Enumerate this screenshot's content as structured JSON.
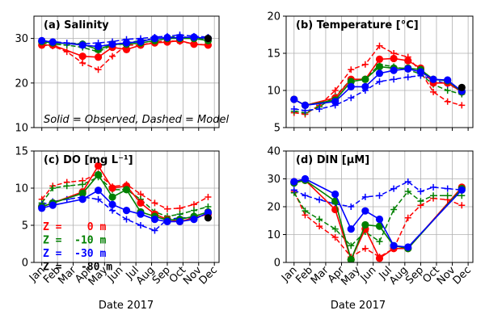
{
  "chart_data": {
    "type": "line",
    "months": [
      "Jan",
      "Feb",
      "Mar",
      "Apr",
      "May",
      "Jun",
      "Jul",
      "Aug",
      "Sep",
      "Oct",
      "Nov",
      "Dec"
    ],
    "xlabel": "Date 2017",
    "note": "Solid = Observed, Dashed = Model",
    "colors": {
      "0": "#ff0000",
      "-10": "#008000",
      "-30": "#0000ff",
      "-80": "#000000"
    },
    "legend": [
      {
        "label": "Z =    0 m",
        "color": "#ff0000"
      },
      {
        "label": "Z =  -10 m",
        "color": "#008000"
      },
      {
        "label": "Z =  -30 m",
        "color": "#0000ff"
      },
      {
        "label": "Z =   -80 m",
        "color": "#000000"
      }
    ],
    "panels": [
      {
        "id": "salinity",
        "title": "(a) Salinity",
        "ylim": [
          10,
          35
        ],
        "yticks": [
          10,
          20,
          30
        ],
        "grid": true,
        "observed": [
          {
            "depth": "0",
            "x": [
              1.0,
              1.7,
              3.6,
              4.6,
              5.5,
              6.4,
              7.3,
              8.2,
              9.0,
              9.8,
              10.7,
              11.6
            ],
            "y": [
              28.5,
              28.5,
              26,
              25.8,
              28,
              27.5,
              28.5,
              29,
              29.2,
              29.5,
              28.7,
              28.5
            ]
          },
          {
            "depth": "-10",
            "x": [
              1.0,
              1.7,
              3.6,
              4.6,
              5.5,
              6.4,
              7.3,
              8.2,
              9.0,
              9.8,
              10.7,
              11.6
            ],
            "y": [
              29.3,
              29,
              28.7,
              27.5,
              28.7,
              28.7,
              29,
              29.5,
              30,
              30,
              30,
              29.5
            ]
          },
          {
            "depth": "-30",
            "x": [
              1.0,
              1.7,
              3.6,
              4.6,
              5.5,
              6.4,
              7.3,
              8.2,
              9.0,
              9.8,
              10.7,
              11.6
            ],
            "y": [
              29.5,
              29.2,
              28.5,
              28.2,
              28.7,
              29,
              29.3,
              30,
              30.2,
              30.2,
              30.3,
              30
            ]
          },
          {
            "depth": "-80",
            "x": [
              11.6
            ],
            "y": [
              30
            ]
          }
        ],
        "model": [
          {
            "depth": "0",
            "x": [
              1.0,
              1.7,
              2.6,
              3.6,
              4.6,
              5.5,
              6.4,
              7.3,
              8.2,
              9.0,
              9.8,
              10.7,
              11.6
            ],
            "y": [
              28.5,
              28.3,
              27,
              24.5,
              23,
              26,
              28.5,
              28.5,
              29.2,
              29.5,
              29.3,
              28.8,
              28.5
            ]
          },
          {
            "depth": "-10",
            "x": [
              1.0,
              1.7,
              2.6,
              3.6,
              4.6,
              5.5,
              6.4,
              7.3,
              8.2,
              9.0,
              9.8,
              10.7,
              11.6
            ],
            "y": [
              29,
              28.7,
              28.5,
              28,
              27,
              28.5,
              29,
              29.5,
              30,
              30.2,
              30.5,
              30,
              30
            ]
          },
          {
            "depth": "-30",
            "x": [
              1.0,
              1.7,
              2.6,
              3.6,
              4.6,
              5.5,
              6.4,
              7.3,
              8.2,
              9.0,
              9.8,
              10.7,
              11.6
            ],
            "y": [
              29.5,
              29.3,
              29,
              28.8,
              29,
              29.3,
              29.8,
              30,
              30.3,
              30.5,
              30.8,
              30.5,
              30.3
            ]
          }
        ]
      },
      {
        "id": "temperature",
        "title": "(b) Temperature [°C]",
        "ylim": [
          5,
          20
        ],
        "yticks": [
          5,
          10,
          15,
          20
        ],
        "grid": true,
        "observed": [
          {
            "depth": "0",
            "x": [
              1.0,
              1.7,
              3.6,
              4.6,
              5.5,
              6.4,
              7.3,
              8.2,
              9.0,
              9.8,
              10.7,
              11.6
            ],
            "y": [
              8.8,
              8,
              9,
              11.5,
              11.5,
              14.2,
              14.3,
              14,
              13,
              11,
              11,
              9.8
            ]
          },
          {
            "depth": "-10",
            "x": [
              1.0,
              1.7,
              3.6,
              4.6,
              5.5,
              6.4,
              7.3,
              8.2,
              9.0,
              9.8,
              10.7,
              11.6
            ],
            "y": [
              8.8,
              8,
              8.7,
              11.2,
              11.5,
              13.2,
              13,
              13,
              12.8,
              11.5,
              11.3,
              9.8
            ]
          },
          {
            "depth": "-30",
            "x": [
              1.0,
              1.7,
              3.6,
              4.6,
              5.5,
              6.4,
              7.3,
              8.2,
              9.0,
              9.8,
              10.7,
              11.6
            ],
            "y": [
              8.8,
              8,
              8.5,
              10.5,
              10.5,
              12.3,
              12.7,
              12.9,
              12.5,
              11.5,
              11.4,
              9.9
            ]
          },
          {
            "depth": "-80",
            "x": [
              11.6
            ],
            "y": [
              10.4
            ]
          }
        ],
        "model": [
          {
            "depth": "0",
            "x": [
              1.0,
              1.7,
              2.6,
              3.6,
              4.6,
              5.5,
              6.4,
              7.3,
              8.2,
              9.0,
              9.8,
              10.7,
              11.6
            ],
            "y": [
              7,
              6.8,
              8,
              10,
              12.8,
              13.5,
              16,
              15,
              14.5,
              12.5,
              9.8,
              8.5,
              8
            ]
          },
          {
            "depth": "-10",
            "x": [
              1.0,
              1.7,
              2.6,
              3.6,
              4.6,
              5.5,
              6.4,
              7.3,
              8.2,
              9.0,
              9.8,
              10.7,
              11.6
            ],
            "y": [
              7.2,
              7,
              7.8,
              9.2,
              11.5,
              11.5,
              13.5,
              13.2,
              12.8,
              12.2,
              10.8,
              10,
              9.5
            ]
          },
          {
            "depth": "-30",
            "x": [
              1.0,
              1.7,
              2.6,
              3.6,
              4.6,
              5.5,
              6.4,
              7.3,
              8.2,
              9.0,
              9.8,
              10.7,
              11.6
            ],
            "y": [
              7.5,
              7.3,
              7.5,
              8,
              9,
              10,
              11.2,
              11.5,
              11.8,
              12,
              11.5,
              10.8,
              10
            ]
          }
        ]
      },
      {
        "id": "do",
        "title": "(c) DO [mg L⁻¹]",
        "ylim": [
          0,
          15
        ],
        "yticks": [
          0,
          5,
          10,
          15
        ],
        "grid": true,
        "observed": [
          {
            "depth": "0",
            "x": [
              1.0,
              1.7,
              3.6,
              4.6,
              5.5,
              6.4,
              7.3,
              8.2,
              9.0,
              9.8,
              10.7,
              11.6
            ],
            "y": [
              7.5,
              8,
              9.5,
              13,
              10,
              10.3,
              8,
              6.5,
              5.8,
              5.5,
              6,
              6.5
            ]
          },
          {
            "depth": "-10",
            "x": [
              1.0,
              1.7,
              3.6,
              4.6,
              5.5,
              6.4,
              7.3,
              8.2,
              9.0,
              9.8,
              10.7,
              11.6
            ],
            "y": [
              7.5,
              8,
              9.3,
              11.8,
              8.8,
              9.8,
              6.8,
              6.2,
              5.7,
              5.8,
              6.2,
              6.8
            ]
          },
          {
            "depth": "-30",
            "x": [
              1.0,
              1.7,
              3.6,
              4.6,
              5.5,
              6.4,
              7.3,
              8.2,
              9.0,
              9.8,
              10.7,
              11.6
            ],
            "y": [
              7.3,
              7.7,
              8.5,
              9.7,
              7.8,
              7,
              6.5,
              5.8,
              5.5,
              5.5,
              5.8,
              6.7
            ]
          },
          {
            "depth": "-80",
            "x": [
              11.6
            ],
            "y": [
              6
            ]
          }
        ],
        "model": [
          {
            "depth": "0",
            "x": [
              1.0,
              1.7,
              2.6,
              3.6,
              4.6,
              5.5,
              6.4,
              7.3,
              8.2,
              9.0,
              9.8,
              10.7,
              11.6
            ],
            "y": [
              8.5,
              10.3,
              10.8,
              11,
              12,
              10.2,
              10.5,
              9.2,
              8,
              7.2,
              7.3,
              7.8,
              8.8
            ]
          },
          {
            "depth": "-10",
            "x": [
              1.0,
              1.7,
              2.6,
              3.6,
              4.6,
              5.5,
              6.4,
              7.3,
              8.2,
              9.0,
              9.8,
              10.7,
              11.6
            ],
            "y": [
              8,
              10,
              10.3,
              10.5,
              11.5,
              9.8,
              9.8,
              8.5,
              6.8,
              6.2,
              6.5,
              7,
              7.5
            ]
          },
          {
            "depth": "-30",
            "x": [
              1.0,
              1.7,
              2.6,
              3.6,
              4.6,
              5.5,
              6.4,
              7.3,
              8.2,
              9.0,
              9.8,
              10.7,
              11.6
            ],
            "y": [
              7.8,
              8.2,
              8.5,
              8.8,
              8.5,
              7,
              5.8,
              5,
              4.3,
              5.8,
              6,
              6,
              6.5
            ]
          }
        ]
      },
      {
        "id": "din",
        "title": "(d) DIN [μM]",
        "ylim": [
          0,
          40
        ],
        "yticks": [
          0,
          10,
          20,
          30,
          40
        ],
        "grid": true,
        "observed": [
          {
            "depth": "0",
            "x": [
              1.0,
              1.7,
              3.6,
              4.6,
              5.5,
              6.4,
              7.3,
              8.2,
              11.6
            ],
            "y": [
              29,
              29.5,
              19,
              1,
              12,
              1.5,
              5,
              5,
              27
            ]
          },
          {
            "depth": "-10",
            "x": [
              1.0,
              1.7,
              3.6,
              4.6,
              5.5,
              6.4,
              7.3,
              8.2,
              11.6
            ],
            "y": [
              28.5,
              29.5,
              22,
              1,
              13.5,
              13,
              6,
              5,
              26.5
            ]
          },
          {
            "depth": "-30",
            "x": [
              1.0,
              1.7,
              3.6,
              4.6,
              5.5,
              6.4,
              7.3,
              8.2,
              11.6
            ],
            "y": [
              29,
              30,
              24.5,
              12,
              18.5,
              15.5,
              6,
              5.5,
              26
            ]
          }
        ],
        "model": [
          {
            "depth": "0",
            "x": [
              1.0,
              1.7,
              2.6,
              3.6,
              4.6,
              5.5,
              6.4,
              7.3,
              8.2,
              9.0,
              9.8,
              10.7,
              11.6
            ],
            "y": [
              25.5,
              17,
              13,
              9,
              2,
              5,
              2,
              5,
              16,
              20.5,
              23,
              22.5,
              20.5
            ]
          },
          {
            "depth": "-10",
            "x": [
              1.0,
              1.7,
              2.6,
              3.6,
              4.6,
              5.5,
              6.4,
              7.3,
              8.2,
              9.0,
              9.8,
              10.7,
              11.6
            ],
            "y": [
              25,
              18.5,
              15.5,
              12,
              6,
              11,
              7.5,
              19,
              25.5,
              22,
              24,
              24,
              24
            ]
          },
          {
            "depth": "-30",
            "x": [
              1.0,
              1.7,
              2.6,
              3.6,
              4.6,
              5.5,
              6.4,
              7.3,
              8.2,
              9.0,
              9.8,
              10.7,
              11.6
            ],
            "y": [
              26,
              24,
              22.5,
              21,
              20,
              23.5,
              24,
              26.5,
              29,
              25.5,
              27,
              26.5,
              26
            ]
          }
        ]
      }
    ]
  }
}
